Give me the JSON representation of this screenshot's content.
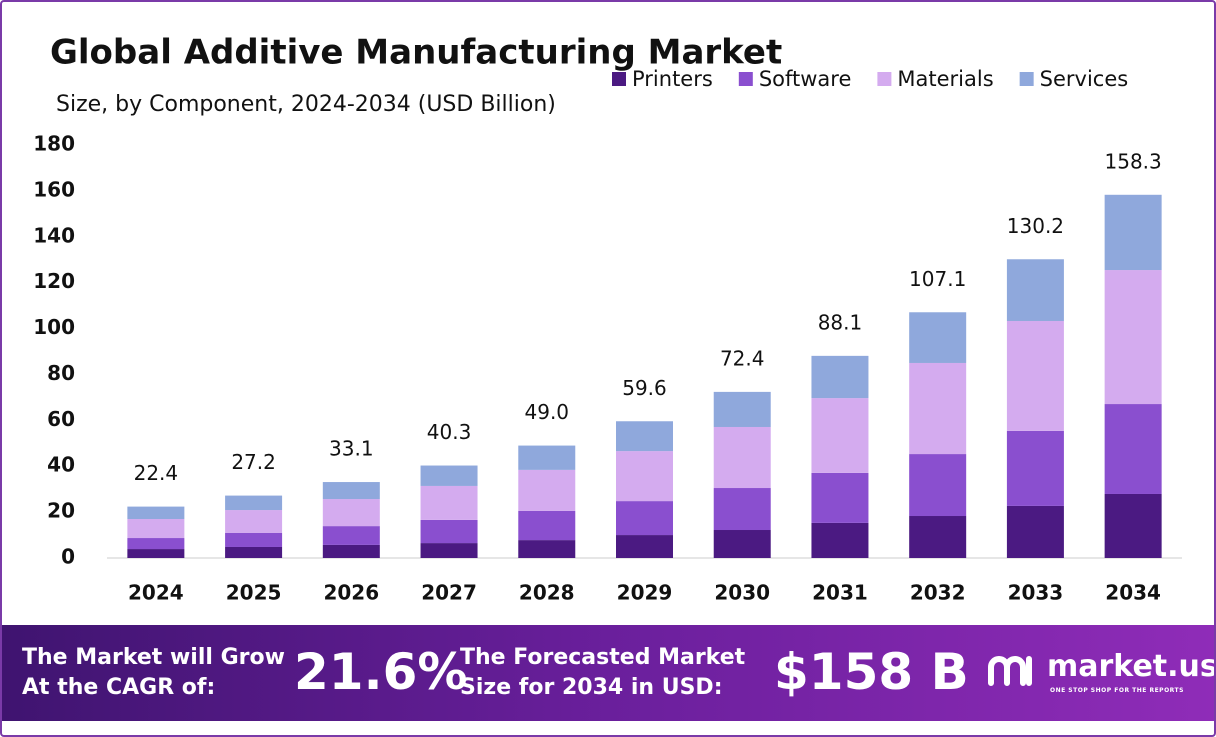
{
  "chart_data": {
    "type": "stacked-bar",
    "title": "Global Additive Manufacturing Market",
    "subtitle": "Size, by Component, 2024-2034 (USD Billion)",
    "categories": [
      "2024",
      "2025",
      "2026",
      "2027",
      "2028",
      "2029",
      "2030",
      "2031",
      "2032",
      "2033",
      "2034"
    ],
    "series": [
      {
        "name": "Printers",
        "color": "#4b1a82",
        "values": [
          3.9,
          4.8,
          5.7,
          6.5,
          7.8,
          10.0,
          12.2,
          15.3,
          18.3,
          22.7,
          27.9
        ]
      },
      {
        "name": "Software",
        "color": "#8a4fcf",
        "values": [
          4.8,
          6.1,
          8.2,
          10.1,
          12.7,
          14.8,
          18.3,
          21.8,
          27.0,
          32.7,
          39.2
        ]
      },
      {
        "name": "Materials",
        "color": "#d4abef",
        "values": [
          8.3,
          10.0,
          11.8,
          14.8,
          17.9,
          21.8,
          26.6,
          32.6,
          39.7,
          47.9,
          58.4
        ]
      },
      {
        "name": "Services",
        "color": "#8fa8dc",
        "values": [
          5.4,
          6.3,
          7.4,
          8.9,
          10.6,
          13.0,
          15.3,
          18.4,
          22.1,
          26.9,
          32.8
        ]
      }
    ],
    "totals": [
      22.4,
      27.2,
      33.1,
      40.3,
      49.0,
      59.6,
      72.4,
      88.1,
      107.1,
      130.2,
      158.3
    ],
    "total_labels": [
      "22.4",
      "27.2",
      "33.1",
      "40.3",
      "49.0",
      "59.6",
      "72.4",
      "88.1",
      "107.1",
      "130.2",
      "158.3"
    ],
    "ylim": [
      0,
      180
    ],
    "yticks": [
      0,
      20,
      40,
      60,
      80,
      100,
      120,
      140,
      160,
      180
    ],
    "grid": false,
    "legend": "top-right"
  },
  "banner": {
    "cagr_line1": "The Market will Grow",
    "cagr_line2": "At the CAGR of:",
    "cagr": "21.6%",
    "forecast_line1": "The Forecasted Market",
    "forecast_line2": "Size for 2034 in USD:",
    "forecast": "$158 B",
    "logo": "market.us",
    "tagline": "ONE STOP SHOP FOR THE REPORTS"
  }
}
